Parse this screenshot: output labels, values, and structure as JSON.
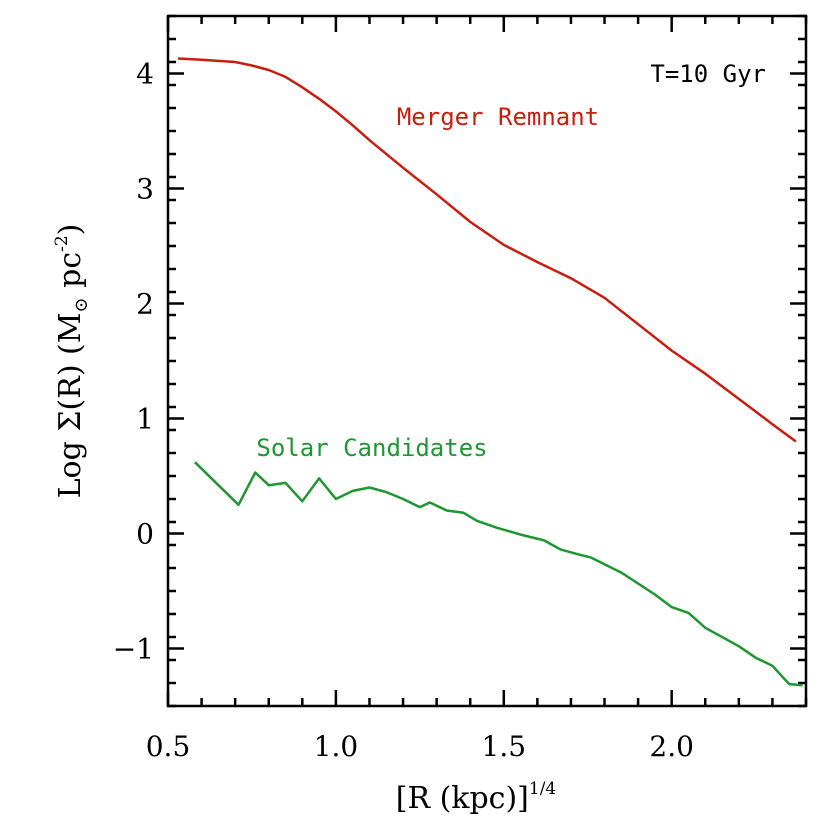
{
  "chart_data": {
    "type": "line",
    "xlabel": "[R (kpc)]",
    "xlabel_sup": "1/4",
    "ylabel": "Log Σ(R) (M",
    "ylabel_sub": "⊙",
    "ylabel_mid": " pc",
    "ylabel_sup": "-2",
    "ylabel_end": ")",
    "xlim": [
      0.5,
      2.4
    ],
    "ylim": [
      -1.5,
      4.5
    ],
    "xticks": [
      0.5,
      1.0,
      1.5,
      2.0
    ],
    "xtick_labels": [
      "0.5",
      "1.0",
      "1.5",
      "2.0"
    ],
    "yticks": [
      -1,
      0,
      1,
      2,
      3,
      4
    ],
    "ytick_labels": [
      "−1",
      "0",
      "1",
      "2",
      "3",
      "4"
    ],
    "annotation": "T=10 Gyr",
    "series": [
      {
        "name": "Merger Remnant",
        "color": "#c81e0f",
        "x": [
          0.53,
          0.6,
          0.7,
          0.75,
          0.8,
          0.85,
          0.9,
          0.95,
          1.0,
          1.05,
          1.1,
          1.2,
          1.3,
          1.4,
          1.5,
          1.6,
          1.7,
          1.8,
          1.9,
          2.0,
          2.1,
          2.2,
          2.3,
          2.37
        ],
        "y": [
          4.13,
          4.12,
          4.1,
          4.07,
          4.03,
          3.97,
          3.88,
          3.78,
          3.67,
          3.55,
          3.42,
          3.18,
          2.95,
          2.71,
          2.51,
          2.36,
          2.22,
          2.05,
          1.82,
          1.59,
          1.39,
          1.17,
          0.95,
          0.8
        ]
      },
      {
        "name": "Solar Candidates",
        "color": "#1e9632",
        "x": [
          0.58,
          0.71,
          0.76,
          0.8,
          0.85,
          0.9,
          0.95,
          1.0,
          1.05,
          1.1,
          1.15,
          1.2,
          1.25,
          1.28,
          1.33,
          1.38,
          1.42,
          1.48,
          1.55,
          1.62,
          1.67,
          1.72,
          1.76,
          1.85,
          1.95,
          2.0,
          2.05,
          2.1,
          2.2,
          2.25,
          2.3,
          2.35,
          2.39
        ],
        "y": [
          0.62,
          0.25,
          0.53,
          0.42,
          0.44,
          0.28,
          0.48,
          0.3,
          0.37,
          0.4,
          0.36,
          0.3,
          0.23,
          0.27,
          0.2,
          0.18,
          0.11,
          0.05,
          -0.01,
          -0.06,
          -0.14,
          -0.18,
          -0.21,
          -0.34,
          -0.53,
          -0.64,
          -0.69,
          -0.82,
          -0.98,
          -1.08,
          -1.15,
          -1.31,
          -1.32
        ]
      }
    ]
  }
}
